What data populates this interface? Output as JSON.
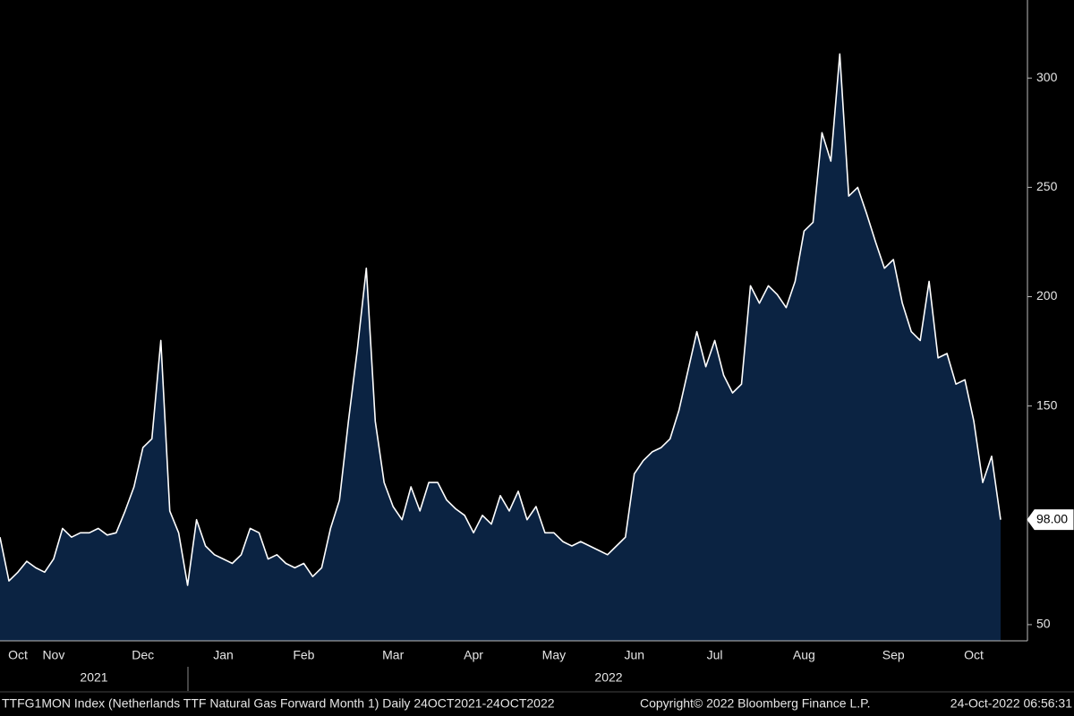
{
  "chart_data": {
    "type": "area",
    "categories": [
      null,
      null,
      "Oct",
      null,
      null,
      null,
      "Nov",
      null,
      null,
      null,
      null,
      null,
      null,
      null,
      null,
      null,
      "Dec",
      null,
      null,
      null,
      null,
      null,
      null,
      null,
      null,
      "Jan",
      null,
      null,
      null,
      null,
      null,
      null,
      null,
      null,
      "Feb",
      null,
      null,
      null,
      null,
      null,
      null,
      null,
      null,
      null,
      "Mar",
      null,
      null,
      null,
      null,
      null,
      null,
      null,
      null,
      "Apr",
      null,
      null,
      null,
      null,
      null,
      null,
      null,
      null,
      "May",
      null,
      null,
      null,
      null,
      null,
      null,
      null,
      null,
      "Jun",
      null,
      null,
      null,
      null,
      null,
      null,
      null,
      null,
      "Jul",
      null,
      null,
      null,
      null,
      null,
      null,
      null,
      null,
      null,
      "Aug",
      null,
      null,
      null,
      null,
      null,
      null,
      null,
      null,
      null,
      "Sep",
      null,
      null,
      null,
      null,
      null,
      null,
      null,
      null,
      "Oct",
      null,
      null,
      null
    ],
    "years": [
      "2021",
      "2022"
    ],
    "series": [
      {
        "color": "#ffffff",
        "area_color": "#0b2342",
        "values": [
          90,
          70,
          74,
          79,
          76,
          74,
          80,
          94,
          90,
          92,
          92,
          94,
          91,
          92,
          102,
          113,
          131,
          135,
          180,
          102,
          92,
          68,
          98,
          86,
          82,
          80,
          78,
          82,
          94,
          92,
          80,
          82,
          78,
          76,
          78,
          72,
          76,
          94,
          107,
          143,
          176,
          213,
          143,
          115,
          104,
          98,
          113,
          102,
          115,
          115,
          107,
          103,
          100,
          92,
          100,
          96,
          109,
          102,
          111,
          98,
          104,
          92,
          92,
          88,
          86,
          88,
          86,
          84,
          82,
          86,
          90,
          119,
          125,
          129,
          131,
          135,
          148,
          166,
          184,
          168,
          180,
          164,
          156,
          160,
          205,
          197,
          205,
          201,
          195,
          207,
          230,
          234,
          275,
          262,
          311,
          246,
          250,
          238,
          225,
          213,
          217,
          197,
          184,
          180,
          207,
          172,
          174,
          160,
          162,
          143,
          115,
          127,
          98
        ],
        "value_labels": [
          null,
          null,
          null,
          null,
          null,
          null,
          null,
          null,
          null,
          null,
          null,
          null,
          null,
          null,
          null,
          null,
          null,
          null,
          null,
          null,
          null,
          null,
          null,
          null,
          null,
          null,
          null,
          null,
          null,
          null,
          null,
          null,
          null,
          null,
          null,
          null,
          null,
          null,
          null,
          null,
          null,
          null,
          null,
          null,
          null,
          null,
          null,
          null,
          null,
          null,
          null,
          null,
          null,
          null,
          null,
          null,
          null,
          null,
          null,
          null,
          null,
          null,
          null,
          null,
          null,
          null,
          null,
          null,
          null,
          null,
          null,
          null,
          null,
          null,
          null,
          null,
          null,
          null,
          null,
          null,
          null,
          null,
          null,
          null,
          null,
          null,
          null,
          null,
          null,
          null,
          null,
          null,
          null,
          null,
          null,
          null,
          null,
          null,
          null,
          null,
          null,
          null,
          null,
          null,
          null,
          null,
          null,
          null,
          null,
          null,
          null,
          null,
          "98.00"
        ]
      }
    ],
    "ylim": [
      42.6,
      335.7
    ],
    "yticks": [
      50,
      150,
      200,
      250,
      300
    ],
    "axis_side": "right",
    "footer": {
      "description": "TTFG1MON Index (Netherlands TTF Natural Gas Forward Month 1)  Daily 24OCT2021-24OCT2022",
      "copyright": "Copyright© 2022 Bloomberg Finance L.P.",
      "timestamp": "24-Oct-2022 06:56:31"
    }
  }
}
